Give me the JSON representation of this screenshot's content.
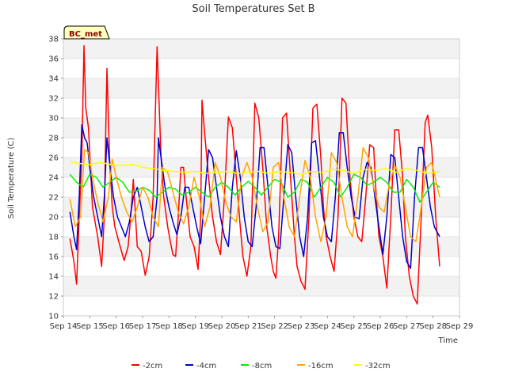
{
  "chart_data": {
    "type": "line",
    "title": "Soil Temperatures Set B",
    "xlabel": "Time",
    "ylabel": "Soil Temperature (C)",
    "badge": "BC_met",
    "ylim": [
      10,
      38
    ],
    "xlim": [
      0,
      15
    ],
    "yticks": [
      10,
      12,
      14,
      16,
      18,
      20,
      22,
      24,
      26,
      28,
      30,
      32,
      34,
      36,
      38
    ],
    "xticks": [
      "Sep 14",
      "Sep 15",
      "Sep 16",
      "Sep 17",
      "Sep 18",
      "Sep 19",
      "Sep 20",
      "Sep 21",
      "Sep 22",
      "Sep 23",
      "Sep 24",
      "Sep 25",
      "Sep 26",
      "Sep 27",
      "Sep 28",
      "Sep 29"
    ],
    "grid": "horizontal bands",
    "legend_position": "bottom",
    "series": [
      {
        "name": "-2cm",
        "color": "#ff0000",
        "x": [
          0.25,
          0.4,
          0.5,
          0.6,
          0.7,
          0.78,
          0.85,
          0.95,
          1.1,
          1.3,
          1.45,
          1.55,
          1.6,
          1.65,
          1.75,
          1.85,
          1.95,
          2.1,
          2.3,
          2.45,
          2.55,
          2.65,
          2.8,
          2.95,
          3.1,
          3.25,
          3.4,
          3.55,
          3.7,
          3.8,
          3.95,
          4.05,
          4.15,
          4.25,
          4.35,
          4.45,
          4.55,
          4.65,
          4.8,
          4.95,
          5.1,
          5.2,
          5.25,
          5.35,
          5.5,
          5.65,
          5.8,
          5.95,
          6.1,
          6.25,
          6.4,
          6.55,
          6.7,
          6.8,
          6.95,
          7.1,
          7.25,
          7.4,
          7.55,
          7.7,
          7.85,
          7.95,
          8.05,
          8.15,
          8.3,
          8.45,
          8.6,
          8.75,
          8.85,
          9.0,
          9.15,
          9.3,
          9.45,
          9.6,
          9.75,
          9.85,
          9.95,
          10.1,
          10.25,
          10.4,
          10.55,
          10.7,
          10.85,
          11.0,
          11.15,
          11.3,
          11.45,
          11.6,
          11.75,
          11.85,
          11.95,
          12.1,
          12.25,
          12.4,
          12.55,
          12.7,
          12.85,
          12.95,
          13.1,
          13.25,
          13.4,
          13.55,
          13.7,
          13.8,
          13.95,
          14.1,
          14.25
        ],
        "values": [
          17.8,
          15.5,
          13.2,
          20.0,
          26.0,
          37.3,
          31.0,
          29.0,
          21.0,
          18.0,
          15.0,
          20.0,
          28.0,
          35.0,
          26.0,
          21.0,
          19.0,
          17.5,
          15.6,
          17.0,
          20.0,
          23.8,
          17.0,
          16.5,
          14.1,
          16.0,
          22.0,
          37.2,
          26.0,
          22.0,
          19.0,
          17.5,
          16.2,
          16.0,
          20.0,
          25.0,
          25.0,
          22.0,
          18.0,
          17.0,
          14.7,
          20.0,
          31.8,
          28.5,
          24.0,
          20.0,
          17.5,
          16.2,
          22.0,
          30.1,
          29.0,
          24.0,
          19.0,
          16.0,
          14.0,
          17.0,
          31.5,
          30.0,
          25.0,
          19.0,
          16.0,
          14.5,
          13.8,
          18.0,
          30.0,
          30.5,
          24.0,
          18.0,
          15.0,
          13.5,
          12.7,
          20.0,
          31.0,
          31.4,
          26.0,
          21.0,
          18.0,
          16.0,
          14.5,
          20.0,
          32.0,
          31.5,
          24.0,
          20.0,
          18.0,
          17.5,
          22.0,
          27.3,
          27.0,
          22.0,
          18.0,
          16.0,
          12.8,
          20.0,
          28.8,
          28.8,
          24.0,
          18.0,
          14.0,
          12.0,
          11.2,
          20.0,
          29.5,
          30.3,
          27.0,
          20.0,
          15.0
        ]
      },
      {
        "name": "-4cm",
        "color": "#0000cc",
        "x": [
          0.25,
          0.4,
          0.5,
          0.6,
          0.7,
          0.8,
          0.9,
          1.0,
          1.15,
          1.3,
          1.45,
          1.55,
          1.65,
          1.75,
          1.9,
          2.05,
          2.2,
          2.35,
          2.5,
          2.65,
          2.8,
          2.95,
          3.1,
          3.25,
          3.4,
          3.55,
          3.6,
          3.7,
          3.85,
          4.0,
          4.15,
          4.3,
          4.45,
          4.6,
          4.75,
          4.9,
          5.05,
          5.2,
          5.35,
          5.5,
          5.65,
          5.8,
          5.95,
          6.1,
          6.25,
          6.4,
          6.55,
          6.7,
          6.85,
          7.0,
          7.15,
          7.3,
          7.45,
          7.6,
          7.75,
          7.9,
          8.05,
          8.2,
          8.35,
          8.5,
          8.65,
          8.8,
          8.95,
          9.1,
          9.25,
          9.4,
          9.55,
          9.7,
          9.85,
          10.0,
          10.15,
          10.3,
          10.45,
          10.6,
          10.75,
          10.9,
          11.05,
          11.2,
          11.35,
          11.5,
          11.65,
          11.8,
          11.95,
          12.1,
          12.25,
          12.4,
          12.55,
          12.7,
          12.85,
          13.0,
          13.15,
          13.3,
          13.45,
          13.6,
          13.75,
          13.9,
          14.05,
          14.25
        ],
        "values": [
          20.5,
          18.0,
          16.7,
          22.0,
          29.3,
          28.0,
          27.5,
          25.0,
          22.0,
          20.0,
          18.0,
          22.0,
          28.0,
          25.5,
          22.0,
          20.0,
          19.0,
          18.0,
          19.5,
          22.0,
          23.0,
          21.0,
          19.0,
          17.5,
          18.0,
          22.0,
          28.0,
          26.0,
          23.0,
          21.0,
          19.5,
          18.2,
          20.0,
          23.0,
          23.0,
          21.0,
          19.0,
          17.3,
          22.0,
          26.8,
          26.0,
          23.0,
          20.0,
          18.0,
          17.0,
          23.0,
          26.7,
          24.0,
          20.0,
          17.5,
          17.0,
          21.0,
          27.0,
          27.0,
          23.0,
          19.0,
          17.0,
          16.8,
          22.0,
          27.3,
          26.5,
          22.0,
          18.0,
          16.0,
          20.0,
          27.5,
          27.7,
          24.0,
          20.0,
          18.0,
          17.5,
          22.0,
          28.5,
          28.5,
          25.0,
          22.0,
          20.0,
          19.8,
          24.0,
          25.5,
          25.0,
          22.0,
          19.0,
          16.2,
          20.0,
          26.3,
          26.0,
          22.0,
          18.0,
          15.5,
          14.8,
          22.0,
          27.0,
          27.0,
          24.0,
          21.0,
          19.0,
          18.0
        ]
      },
      {
        "name": "-8cm",
        "color": "#00ee00",
        "x": [
          0.25,
          0.5,
          0.75,
          1.0,
          1.25,
          1.5,
          1.75,
          2.0,
          2.25,
          2.5,
          2.75,
          3.0,
          3.25,
          3.5,
          3.75,
          4.0,
          4.25,
          4.5,
          4.75,
          5.0,
          5.25,
          5.5,
          5.75,
          6.0,
          6.25,
          6.5,
          6.75,
          7.0,
          7.25,
          7.5,
          7.75,
          8.0,
          8.25,
          8.5,
          8.75,
          9.0,
          9.25,
          9.5,
          9.75,
          10.0,
          10.25,
          10.5,
          10.75,
          11.0,
          11.25,
          11.5,
          11.75,
          12.0,
          12.25,
          12.5,
          12.75,
          13.0,
          13.25,
          13.5,
          13.75,
          14.0,
          14.25
        ],
        "values": [
          24.3,
          23.5,
          23.0,
          24.3,
          24.0,
          23.0,
          23.5,
          24.0,
          23.5,
          22.5,
          22.6,
          23.0,
          22.7,
          22.0,
          22.5,
          23.0,
          22.8,
          22.2,
          22.5,
          23.0,
          22.5,
          22.0,
          23.0,
          23.5,
          23.0,
          22.2,
          23.0,
          23.6,
          23.0,
          22.2,
          23.0,
          23.8,
          23.5,
          22.0,
          22.5,
          23.8,
          23.5,
          22.0,
          23.0,
          24.0,
          23.5,
          22.0,
          23.0,
          24.3,
          24.0,
          23.2,
          23.5,
          24.0,
          23.5,
          22.5,
          22.5,
          23.8,
          23.0,
          21.5,
          22.5,
          23.5,
          23.0
        ]
      },
      {
        "name": "-16cm",
        "color": "#ffa500",
        "x": [
          0.25,
          0.45,
          0.65,
          0.8,
          0.95,
          1.1,
          1.3,
          1.5,
          1.7,
          1.85,
          2.0,
          2.2,
          2.4,
          2.6,
          2.8,
          3.0,
          3.2,
          3.4,
          3.6,
          3.75,
          3.95,
          4.15,
          4.35,
          4.55,
          4.75,
          4.95,
          5.15,
          5.35,
          5.55,
          5.75,
          5.95,
          6.15,
          6.35,
          6.55,
          6.75,
          6.95,
          7.15,
          7.35,
          7.55,
          7.75,
          7.95,
          8.15,
          8.35,
          8.55,
          8.75,
          8.95,
          9.15,
          9.35,
          9.55,
          9.75,
          9.95,
          10.15,
          10.35,
          10.55,
          10.75,
          10.95,
          11.15,
          11.35,
          11.55,
          11.75,
          11.95,
          12.15,
          12.35,
          12.55,
          12.75,
          12.95,
          13.15,
          13.35,
          13.55,
          13.75,
          13.95,
          14.25
        ],
        "values": [
          21.8,
          19.0,
          20.0,
          26.8,
          26.5,
          24.0,
          21.5,
          19.5,
          22.0,
          25.8,
          24.0,
          22.0,
          20.5,
          19.5,
          21.0,
          23.0,
          22.0,
          20.0,
          19.0,
          25.0,
          24.5,
          22.5,
          20.5,
          19.3,
          21.0,
          24.0,
          22.0,
          19.0,
          21.0,
          25.5,
          24.0,
          21.5,
          20.0,
          19.5,
          24.0,
          25.5,
          24.0,
          21.0,
          18.5,
          19.5,
          25.0,
          25.5,
          22.0,
          19.0,
          18.0,
          22.0,
          25.7,
          24.0,
          20.0,
          17.5,
          20.0,
          26.5,
          25.5,
          22.0,
          19.0,
          18.0,
          22.0,
          27.0,
          26.0,
          23.0,
          21.0,
          20.5,
          23.5,
          25.2,
          24.0,
          21.0,
          18.0,
          17.5,
          21.0,
          25.0,
          25.5,
          22.0
        ]
      },
      {
        "name": "-32cm",
        "color": "#ffff00",
        "x": [
          0.25,
          0.6,
          1.0,
          1.4,
          1.8,
          2.2,
          2.6,
          3.0,
          3.4,
          3.8,
          4.2,
          4.6,
          5.0,
          5.4,
          5.8,
          6.2,
          6.6,
          7.0,
          7.4,
          7.8,
          8.2,
          8.6,
          9.0,
          9.4,
          9.8,
          10.2,
          10.6,
          11.0,
          11.4,
          11.8,
          12.2,
          12.6,
          13.0,
          13.4,
          13.8,
          14.25
        ],
        "values": [
          25.6,
          25.4,
          25.3,
          25.5,
          25.3,
          25.2,
          25.3,
          25.0,
          24.9,
          24.7,
          24.6,
          24.5,
          24.6,
          24.4,
          24.5,
          24.6,
          24.4,
          24.5,
          24.6,
          24.4,
          24.6,
          24.5,
          24.3,
          24.6,
          24.5,
          24.8,
          24.7,
          24.4,
          24.8,
          24.7,
          24.9,
          24.5,
          24.9,
          24.7,
          24.4,
          24.6
        ]
      }
    ]
  }
}
